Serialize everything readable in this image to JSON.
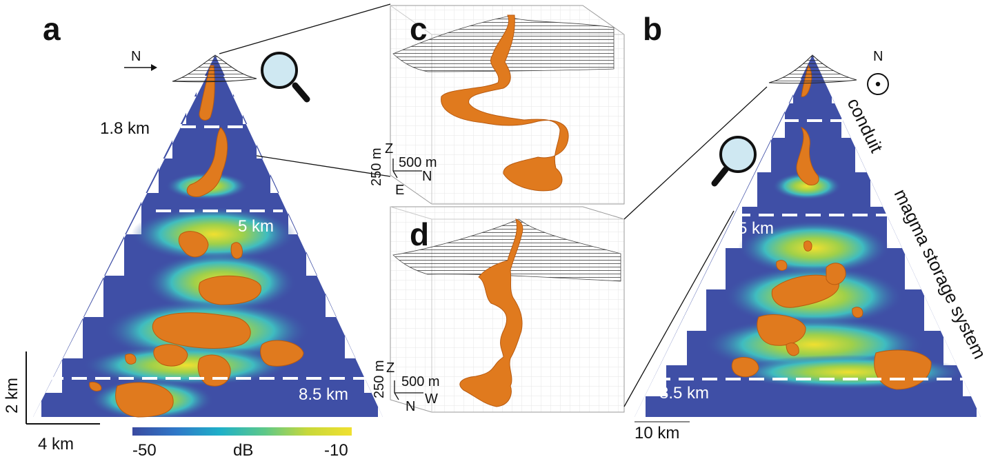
{
  "panels": {
    "a": "a",
    "b": "b",
    "c": "c",
    "d": "d"
  },
  "panel_a": {
    "north_label": "N",
    "depth_labels": [
      "1.8 km",
      "5 km",
      "8.5 km"
    ],
    "scale_vertical": "2 km",
    "scale_horizontal": "4 km"
  },
  "panel_b": {
    "north_label": "N",
    "depth_labels": [
      "5 km",
      "8.5 km"
    ],
    "scale_horizontal": "10 km",
    "annotations": [
      "conduit",
      "magma storage system"
    ]
  },
  "panel_c": {
    "axis_vertical": "Z",
    "axis_horizontal": "N",
    "axis_depth": "E",
    "scale_vertical": "250 m",
    "scale_horizontal": "500 m"
  },
  "panel_d": {
    "axis_vertical": "Z",
    "axis_horizontal": "W",
    "axis_depth": "N",
    "scale_vertical": "250 m",
    "scale_horizontal": "500 m"
  },
  "colorbar": {
    "min_label": "-50",
    "unit_label": "dB",
    "max_label": "-10",
    "colors": [
      "#3a4aa0",
      "#2f78c8",
      "#1fb0c8",
      "#5cc88a",
      "#c8d83a",
      "#f0e030"
    ]
  },
  "colors": {
    "background_field": "#3f4fa6",
    "iso_surface": "#e07a1e",
    "iso_highlight": "#f4a04a"
  }
}
